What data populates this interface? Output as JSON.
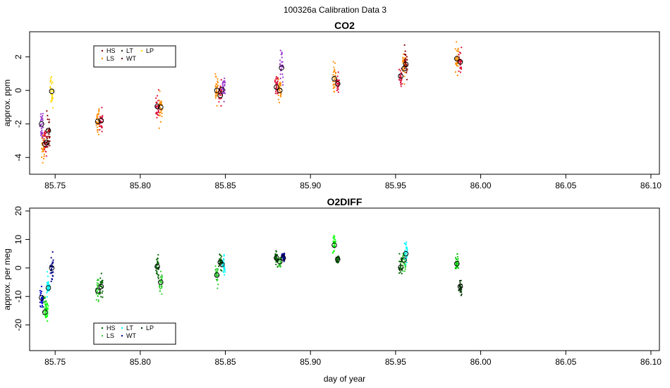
{
  "figure_title": "100326a   Calibration Data 3",
  "chart_data": [
    {
      "type": "scatter",
      "title": "CO2",
      "xlabel": "",
      "ylabel": "approx. ppm",
      "xlim": [
        85.735,
        86.105
      ],
      "ylim": [
        -5.0,
        3.5
      ],
      "x_ticks": [
        85.75,
        85.8,
        85.85,
        85.9,
        85.95,
        86.0,
        86.05,
        86.1
      ],
      "x_tick_labels": [
        "85.75",
        "85.80",
        "85.85",
        "85.90",
        "85.95",
        "86.00",
        "86.05",
        "86.10"
      ],
      "y_ticks": [
        -4,
        -2,
        0,
        2
      ],
      "y_tick_labels": [
        "-4",
        "-2",
        "0",
        "2"
      ],
      "legend": {
        "placement": "top-left",
        "entries": [
          {
            "label": "HS",
            "color": "#8B0000"
          },
          {
            "label": "LT",
            "color": "#3a2a1a"
          },
          {
            "label": "LP",
            "color": "#FFD700"
          },
          {
            "label": "LS",
            "color": "#FF8C00"
          },
          {
            "label": "WT",
            "color": "#5a1a1a"
          }
        ]
      },
      "clusters": [
        {
          "x": 85.742,
          "mean": -2.0,
          "spread": 0.8,
          "color": "#9932CC"
        },
        {
          "x": 85.743,
          "mean": -3.3,
          "spread": 0.7,
          "color": "#FF8C00"
        },
        {
          "x": 85.744,
          "mean": -3.1,
          "spread": 0.6,
          "color": "#DC143C"
        },
        {
          "x": 85.746,
          "mean": -2.5,
          "spread": 1.0,
          "color": "#8B0000"
        },
        {
          "x": 85.748,
          "mean": -0.1,
          "spread": 0.7,
          "color": "#FFD700"
        },
        {
          "x": 85.775,
          "mean": -1.8,
          "spread": 0.6,
          "color": "#FF8C00"
        },
        {
          "x": 85.777,
          "mean": -1.8,
          "spread": 0.6,
          "color": "#DC143C"
        },
        {
          "x": 85.81,
          "mean": -1.0,
          "spread": 0.6,
          "color": "#DC143C"
        },
        {
          "x": 85.812,
          "mean": -1.0,
          "spread": 0.6,
          "color": "#FF8C00"
        },
        {
          "x": 85.845,
          "mean": 0.0,
          "spread": 0.6,
          "color": "#FF8C00"
        },
        {
          "x": 85.847,
          "mean": -0.2,
          "spread": 0.5,
          "color": "#DC143C"
        },
        {
          "x": 85.849,
          "mean": 0.2,
          "spread": 0.5,
          "color": "#9932CC"
        },
        {
          "x": 85.88,
          "mean": 0.2,
          "spread": 0.6,
          "color": "#DC143C"
        },
        {
          "x": 85.882,
          "mean": 0.0,
          "spread": 0.5,
          "color": "#FF8C00"
        },
        {
          "x": 85.883,
          "mean": 1.4,
          "spread": 0.7,
          "color": "#9932CC"
        },
        {
          "x": 85.914,
          "mean": 0.7,
          "spread": 0.7,
          "color": "#FF8C00"
        },
        {
          "x": 85.916,
          "mean": 0.4,
          "spread": 0.6,
          "color": "#DC143C"
        },
        {
          "x": 85.953,
          "mean": 0.8,
          "spread": 0.6,
          "color": "#DC143C"
        },
        {
          "x": 85.955,
          "mean": 1.4,
          "spread": 0.6,
          "color": "#FF8C00"
        },
        {
          "x": 85.956,
          "mean": 1.6,
          "spread": 0.6,
          "color": "#8B0000"
        },
        {
          "x": 85.986,
          "mean": 1.9,
          "spread": 0.7,
          "color": "#FF8C00"
        },
        {
          "x": 85.988,
          "mean": 1.7,
          "spread": 0.6,
          "color": "#DC143C"
        }
      ],
      "cluster_means": [
        {
          "x": 85.742,
          "y": -2.0
        },
        {
          "x": 85.744,
          "y": -3.2
        },
        {
          "x": 85.745,
          "y": -3.1
        },
        {
          "x": 85.746,
          "y": -2.4
        },
        {
          "x": 85.748,
          "y": -0.05
        },
        {
          "x": 85.775,
          "y": -1.85
        },
        {
          "x": 85.777,
          "y": -1.8
        },
        {
          "x": 85.81,
          "y": -0.95
        },
        {
          "x": 85.812,
          "y": -1.0
        },
        {
          "x": 85.845,
          "y": 0.0
        },
        {
          "x": 85.847,
          "y": -0.3
        },
        {
          "x": 85.848,
          "y": 0.05
        },
        {
          "x": 85.88,
          "y": 0.2
        },
        {
          "x": 85.882,
          "y": 0.0
        },
        {
          "x": 85.883,
          "y": 1.35
        },
        {
          "x": 85.914,
          "y": 0.7
        },
        {
          "x": 85.916,
          "y": 0.4
        },
        {
          "x": 85.953,
          "y": 0.85
        },
        {
          "x": 85.955,
          "y": 1.3
        },
        {
          "x": 85.956,
          "y": 1.55
        },
        {
          "x": 85.986,
          "y": 1.9
        },
        {
          "x": 85.988,
          "y": 1.7
        }
      ]
    },
    {
      "type": "scatter",
      "title": "O2DIFF",
      "xlabel": "day of year",
      "ylabel": "approx. per meg",
      "xlim": [
        85.735,
        86.105
      ],
      "ylim": [
        -29.0,
        21.0
      ],
      "x_ticks": [
        85.75,
        85.8,
        85.85,
        85.9,
        85.95,
        86.0,
        86.05,
        86.1
      ],
      "x_tick_labels": [
        "85.75",
        "85.80",
        "85.85",
        "85.90",
        "85.95",
        "86.00",
        "86.05",
        "86.10"
      ],
      "y_ticks": [
        -20,
        -10,
        0,
        10,
        20
      ],
      "y_tick_labels": [
        "-20",
        "-10",
        "0",
        "10",
        "20"
      ],
      "legend": {
        "placement": "bottom-left",
        "entries": [
          {
            "label": "HS",
            "color": "#006400"
          },
          {
            "label": "LT",
            "color": "#00FFFF"
          },
          {
            "label": "LP",
            "color": "#003300"
          },
          {
            "label": "LS",
            "color": "#32CD32"
          },
          {
            "label": "WT",
            "color": "#00008B"
          }
        ]
      },
      "clusters": [
        {
          "x": 85.742,
          "mean": -11.0,
          "spread": 3.0,
          "color": "#0000CD"
        },
        {
          "x": 85.744,
          "mean": -13.0,
          "spread": 3.0,
          "color": "#32CD32"
        },
        {
          "x": 85.745,
          "mean": -15.0,
          "spread": 2.5,
          "color": "#00FF00"
        },
        {
          "x": 85.746,
          "mean": -7.0,
          "spread": 3.0,
          "color": "#00FFFF"
        },
        {
          "x": 85.748,
          "mean": 0.0,
          "spread": 4.0,
          "color": "#00008B"
        },
        {
          "x": 85.775,
          "mean": -8.0,
          "spread": 3.0,
          "color": "#32CD32"
        },
        {
          "x": 85.777,
          "mean": -6.5,
          "spread": 3.0,
          "color": "#006400"
        },
        {
          "x": 85.81,
          "mean": 0.5,
          "spread": 4.0,
          "color": "#006400"
        },
        {
          "x": 85.812,
          "mean": -5.0,
          "spread": 4.0,
          "color": "#32CD32"
        },
        {
          "x": 85.845,
          "mean": -2.0,
          "spread": 3.0,
          "color": "#32CD32"
        },
        {
          "x": 85.847,
          "mean": 2.0,
          "spread": 2.5,
          "color": "#006400"
        },
        {
          "x": 85.849,
          "mean": 1.0,
          "spread": 2.5,
          "color": "#00FFFF"
        },
        {
          "x": 85.88,
          "mean": 3.5,
          "spread": 2.0,
          "color": "#006400"
        },
        {
          "x": 85.882,
          "mean": 2.0,
          "spread": 2.0,
          "color": "#32CD32"
        },
        {
          "x": 85.884,
          "mean": 3.5,
          "spread": 1.5,
          "color": "#00008B"
        },
        {
          "x": 85.914,
          "mean": 8.0,
          "spread": 2.5,
          "color": "#00FF00"
        },
        {
          "x": 85.916,
          "mean": 3.0,
          "spread": 1.2,
          "color": "#006400"
        },
        {
          "x": 85.953,
          "mean": 0.5,
          "spread": 3.5,
          "color": "#006400"
        },
        {
          "x": 85.955,
          "mean": 2.5,
          "spread": 3.0,
          "color": "#32CD32"
        },
        {
          "x": 85.956,
          "mean": 5.0,
          "spread": 3.5,
          "color": "#00FFFF"
        },
        {
          "x": 85.986,
          "mean": 1.5,
          "spread": 2.5,
          "color": "#00CC00"
        },
        {
          "x": 85.988,
          "mean": -6.5,
          "spread": 2.0,
          "color": "#003300"
        }
      ],
      "cluster_means": [
        {
          "x": 85.742,
          "y": -10.5
        },
        {
          "x": 85.744,
          "y": -15.5
        },
        {
          "x": 85.746,
          "y": -7.0
        },
        {
          "x": 85.748,
          "y": 0.0
        },
        {
          "x": 85.775,
          "y": -8.0
        },
        {
          "x": 85.777,
          "y": -6.5
        },
        {
          "x": 85.81,
          "y": 0.5
        },
        {
          "x": 85.812,
          "y": -5.0
        },
        {
          "x": 85.845,
          "y": -2.5
        },
        {
          "x": 85.847,
          "y": 2.0
        },
        {
          "x": 85.848,
          "y": 1.2
        },
        {
          "x": 85.88,
          "y": 3.5
        },
        {
          "x": 85.882,
          "y": 2.2
        },
        {
          "x": 85.884,
          "y": 3.5
        },
        {
          "x": 85.914,
          "y": 8.0
        },
        {
          "x": 85.916,
          "y": 3.0
        },
        {
          "x": 85.953,
          "y": 0.2
        },
        {
          "x": 85.955,
          "y": 2.8
        },
        {
          "x": 85.956,
          "y": 5.0
        },
        {
          "x": 85.986,
          "y": 1.5
        },
        {
          "x": 85.988,
          "y": -6.5
        }
      ]
    }
  ]
}
